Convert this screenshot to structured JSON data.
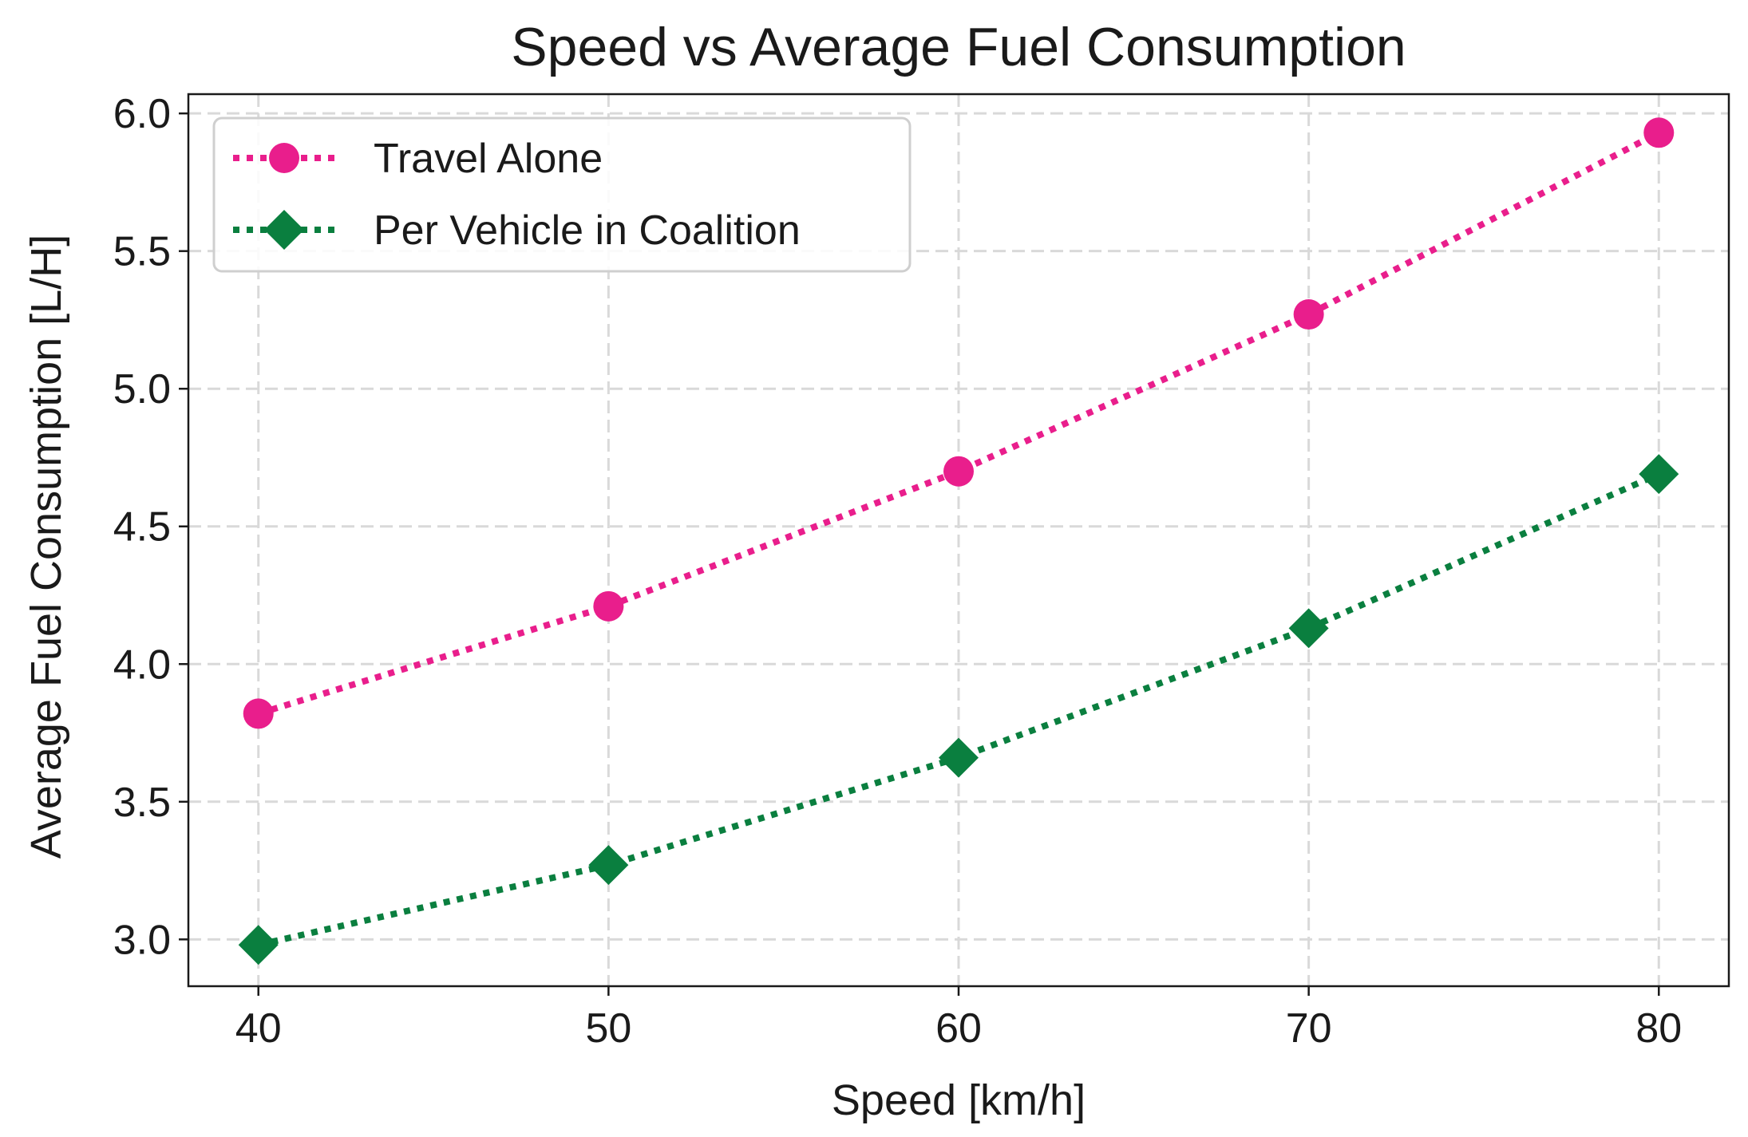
{
  "chart_data": {
    "type": "line",
    "title": "Speed vs Average Fuel Consumption",
    "xlabel": "Speed [km/h]",
    "ylabel": "Average Fuel Consumption [L/H]",
    "x": [
      40,
      50,
      60,
      70,
      80
    ],
    "xlim": [
      38,
      82
    ],
    "ylim": [
      2.83,
      6.07
    ],
    "xticks": [
      40,
      50,
      60,
      70,
      80
    ],
    "xtick_labels": [
      "40",
      "50",
      "60",
      "70",
      "80"
    ],
    "yticks": [
      3.0,
      3.5,
      4.0,
      4.5,
      5.0,
      5.5,
      6.0
    ],
    "ytick_labels": [
      "3.0",
      "3.5",
      "4.0",
      "4.5",
      "5.0",
      "5.5",
      "6.0"
    ],
    "grid": true,
    "legend_position": "top-left",
    "series": [
      {
        "name": "Travel Alone",
        "values": [
          3.82,
          4.21,
          4.7,
          5.27,
          5.93
        ],
        "color": "#e91e8c",
        "marker": "circle",
        "line_style": "dotted"
      },
      {
        "name": "Per Vehicle in Coalition",
        "values": [
          2.98,
          3.27,
          3.66,
          4.13,
          4.69
        ],
        "color": "#0a7f3f",
        "marker": "diamond",
        "line_style": "dotted"
      }
    ]
  }
}
